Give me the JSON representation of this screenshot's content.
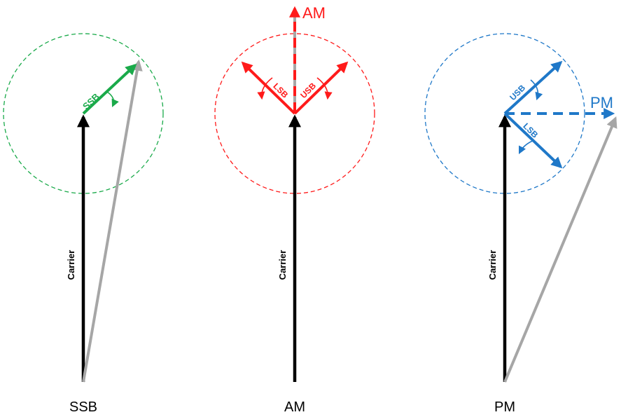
{
  "colors": {
    "carrier": "#000000",
    "resultant": "#a6a6a6",
    "ssb": "#1aaa4a",
    "am": "#ff1a1a",
    "pm": "#1f78c8"
  },
  "panels": {
    "ssb": {
      "title": "SSB",
      "carrier_label": "Carrier",
      "sideband_label": "SSB"
    },
    "am": {
      "title": "AM",
      "carrier_label": "Carrier",
      "result_label": "AM",
      "lsb_label": "LSB",
      "usb_label": "USB"
    },
    "pm": {
      "title": "PM",
      "carrier_label": "Carrier",
      "result_label": "PM",
      "usb_label": "USB",
      "lsb_label": "LSB"
    }
  }
}
